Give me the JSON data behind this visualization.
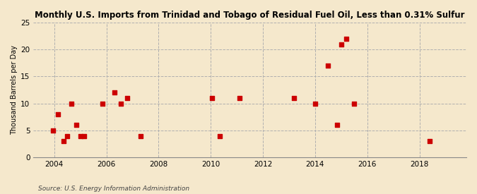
{
  "title": "Monthly U.S. Imports from Trinidad and Tobago of Residual Fuel Oil, Less than 0.31% Sulfur",
  "ylabel": "Thousand Barrels per Day",
  "source": "Source: U.S. Energy Information Administration",
  "background_color": "#f5e8cc",
  "marker_color": "#cc0000",
  "xlim": [
    2003.2,
    2019.8
  ],
  "ylim": [
    0,
    25
  ],
  "yticks": [
    0,
    5,
    10,
    15,
    20,
    25
  ],
  "xticks": [
    2004,
    2006,
    2008,
    2010,
    2012,
    2014,
    2016,
    2018
  ],
  "data_points": [
    [
      2003.95,
      5.0
    ],
    [
      2004.15,
      8.0
    ],
    [
      2004.35,
      3.0
    ],
    [
      2004.5,
      4.0
    ],
    [
      2004.65,
      10.0
    ],
    [
      2004.85,
      6.0
    ],
    [
      2005.0,
      4.0
    ],
    [
      2005.15,
      4.0
    ],
    [
      2005.85,
      10.0
    ],
    [
      2006.3,
      12.0
    ],
    [
      2006.55,
      10.0
    ],
    [
      2006.8,
      11.0
    ],
    [
      2007.3,
      4.0
    ],
    [
      2010.05,
      11.0
    ],
    [
      2010.35,
      4.0
    ],
    [
      2011.1,
      11.0
    ],
    [
      2013.2,
      11.0
    ],
    [
      2014.0,
      10.0
    ],
    [
      2014.5,
      17.0
    ],
    [
      2014.85,
      6.0
    ],
    [
      2015.0,
      21.0
    ],
    [
      2015.2,
      22.0
    ],
    [
      2015.5,
      10.0
    ],
    [
      2018.4,
      3.0
    ]
  ]
}
